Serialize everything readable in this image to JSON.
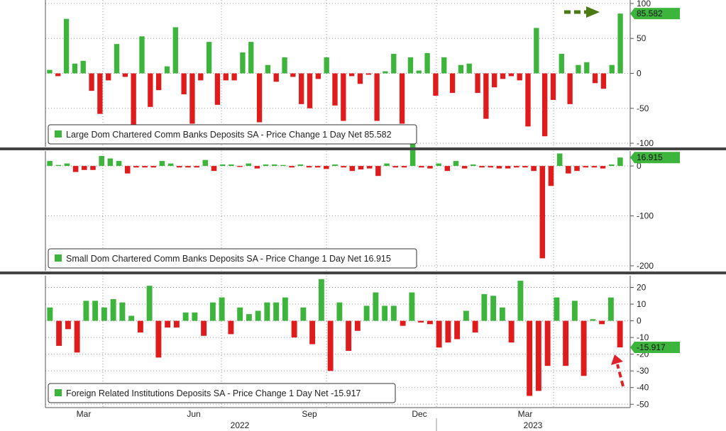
{
  "colors": {
    "positive": "#3db53d",
    "negative": "#e01b1b",
    "grid": "#9a9a9a",
    "separator": "#444444",
    "tag_bg": "#3db53d",
    "arrow_green": "#4b7a14",
    "arrow_red": "#e0202a"
  },
  "x_axis": {
    "month_labels": [
      "Mar",
      "Jun",
      "Sep",
      "Dec",
      "Mar"
    ],
    "year_labels": [
      "2022",
      "2023"
    ]
  },
  "chart_data": [
    {
      "type": "bar",
      "legend": "Large Dom Chartered Comm Banks Deposits SA - Price Change 1 Day Net 85.582",
      "last_value_label": "85.582",
      "ylim": [
        -105,
        105
      ],
      "yticks": [
        100,
        50,
        0,
        -50,
        -100
      ],
      "ytick_labels": [
        "100",
        "50",
        "0",
        "-50",
        "-100"
      ],
      "values": [
        5,
        -4,
        78,
        14,
        18,
        -25,
        -58,
        -10,
        42,
        -5,
        -75,
        53,
        -48,
        -24,
        10,
        66,
        -30,
        -72,
        -10,
        45,
        -45,
        -10,
        -10,
        30,
        45,
        -70,
        12,
        -12,
        23,
        -5,
        -44,
        -50,
        -8,
        23,
        -46,
        -68,
        -4,
        -15,
        -2,
        -68,
        3,
        28,
        -72,
        23,
        4,
        29,
        -32,
        23,
        -28,
        12,
        14,
        -28,
        -65,
        -20,
        -8,
        -4,
        -10,
        -76,
        65,
        -90,
        -38,
        28,
        -44,
        12,
        16,
        -14,
        -22,
        12,
        85.582
      ]
    },
    {
      "type": "bar",
      "legend": "Small Dom Chartered Comm Banks Deposits SA - Price Change 1 Day Net 16.915",
      "last_value_label": "16.915",
      "ylim": [
        -210,
        30
      ],
      "yticks": [
        0,
        -100,
        -200
      ],
      "ytick_labels": [
        "0",
        "-100",
        "-200"
      ],
      "values": [
        10,
        2,
        5,
        -12,
        -8,
        -8,
        20,
        15,
        10,
        -15,
        -3,
        -3,
        -3,
        10,
        5,
        -3,
        -3,
        -3,
        12,
        -10,
        3,
        3,
        -2,
        5,
        -5,
        3,
        3,
        2,
        -3,
        3,
        -3,
        -3,
        -6,
        3,
        -3,
        -10,
        -7,
        -5,
        -20,
        5,
        -3,
        -3,
        65,
        -3,
        -5,
        5,
        -10,
        10,
        -5,
        3,
        -3,
        -3,
        -5,
        -5,
        -3,
        -3,
        -10,
        -185,
        -40,
        25,
        -15,
        -10,
        -3,
        -3,
        -5,
        3,
        16.915
      ]
    },
    {
      "type": "bar",
      "legend": "Foreign Related Institutions Deposits SA - Price Change 1 Day Net -15.917",
      "last_value_label": "-15.917",
      "ylim": [
        -52,
        27
      ],
      "yticks": [
        20,
        10,
        0,
        -10,
        -20,
        -30,
        -40,
        -50
      ],
      "ytick_labels": [
        "20",
        "10",
        "0",
        "-10",
        "-20",
        "-30",
        "-40",
        "-50"
      ],
      "values": [
        8,
        -15,
        -5,
        -19,
        12,
        12,
        8,
        13,
        11,
        3,
        -7,
        21,
        -22,
        -4,
        -4,
        5,
        5,
        -9,
        11,
        14,
        -8,
        8,
        4,
        6,
        11,
        11,
        14,
        -10,
        8,
        -14,
        25,
        -30,
        11,
        -18,
        -6,
        9,
        17,
        9,
        9,
        -3,
        17,
        -1,
        -2,
        -16,
        -13,
        -11,
        6,
        -7,
        16,
        15,
        8,
        -13,
        24,
        -45,
        -42,
        -27,
        14,
        -27,
        12,
        -33,
        1,
        -2,
        14,
        -15.917
      ]
    }
  ]
}
